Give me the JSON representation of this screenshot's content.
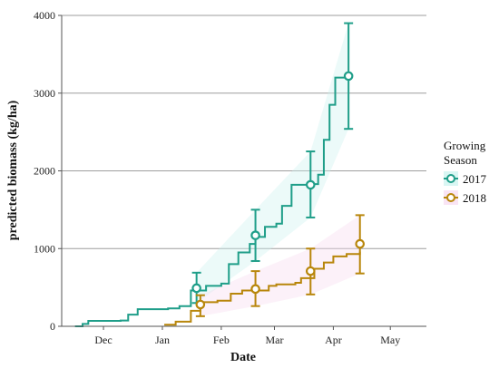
{
  "chart_data": {
    "type": "line",
    "xlabel": "Date",
    "ylabel": "predicted biomass (kg/ha)",
    "x_ticks": [
      {
        "label": "Dec",
        "date": "2016-12-01"
      },
      {
        "label": "Jan",
        "date": "2017-01-01"
      },
      {
        "label": "Feb",
        "date": "2017-02-01"
      },
      {
        "label": "Mar",
        "date": "2017-03-01"
      },
      {
        "label": "Apr",
        "date": "2017-04-01"
      },
      {
        "label": "May",
        "date": "2017-05-01"
      }
    ],
    "xlim": [
      "2016-11-09",
      "2017-05-20"
    ],
    "ylim": [
      0,
      4000
    ],
    "y_ticks": [
      0,
      1000,
      2000,
      3000,
      4000
    ],
    "grid": "horizontal",
    "legend": {
      "title_lines": [
        "Growing",
        "Season"
      ],
      "placement": "right"
    },
    "series": [
      {
        "name": "2017",
        "color": "#1f9e89",
        "ribbon_color": "#c9f2ee",
        "line": [
          [
            "2016-11-16",
            0
          ],
          [
            "2016-11-20",
            30
          ],
          [
            "2016-11-23",
            70
          ],
          [
            "2016-12-10",
            75
          ],
          [
            "2016-12-14",
            150
          ],
          [
            "2016-12-19",
            220
          ],
          [
            "2017-01-04",
            230
          ],
          [
            "2017-01-10",
            260
          ],
          [
            "2017-01-16",
            460
          ],
          [
            "2017-01-24",
            520
          ],
          [
            "2017-02-01",
            550
          ],
          [
            "2017-02-05",
            800
          ],
          [
            "2017-02-10",
            950
          ],
          [
            "2017-02-16",
            1060
          ],
          [
            "2017-02-19",
            1150
          ],
          [
            "2017-02-24",
            1280
          ],
          [
            "2017-03-02",
            1320
          ],
          [
            "2017-03-05",
            1550
          ],
          [
            "2017-03-10",
            1820
          ],
          [
            "2017-03-20",
            1830
          ],
          [
            "2017-03-24",
            1950
          ],
          [
            "2017-03-27",
            2400
          ],
          [
            "2017-03-30",
            2850
          ],
          [
            "2017-04-02",
            3200
          ],
          [
            "2017-04-09",
            3210
          ]
        ],
        "points": [
          {
            "date": "2017-01-19",
            "y": 490,
            "ymin": 300,
            "ymax": 690
          },
          {
            "date": "2017-02-19",
            "y": 1170,
            "ymin": 840,
            "ymax": 1500
          },
          {
            "date": "2017-03-20",
            "y": 1820,
            "ymin": 1400,
            "ymax": 2250
          },
          {
            "date": "2017-04-09",
            "y": 3220,
            "ymin": 2540,
            "ymax": 3900
          }
        ]
      },
      {
        "name": "2018",
        "color": "#b8860b",
        "ribbon_color": "#f7d8ef",
        "line": [
          [
            "2017-01-02",
            20
          ],
          [
            "2017-01-08",
            60
          ],
          [
            "2017-01-16",
            200
          ],
          [
            "2017-01-21",
            310
          ],
          [
            "2017-01-30",
            330
          ],
          [
            "2017-02-06",
            420
          ],
          [
            "2017-02-12",
            460
          ],
          [
            "2017-02-26",
            520
          ],
          [
            "2017-03-02",
            540
          ],
          [
            "2017-03-12",
            560
          ],
          [
            "2017-03-15",
            620
          ],
          [
            "2017-03-22",
            740
          ],
          [
            "2017-03-27",
            820
          ],
          [
            "2017-04-01",
            900
          ],
          [
            "2017-04-08",
            930
          ],
          [
            "2017-04-15",
            960
          ]
        ],
        "points": [
          {
            "date": "2017-01-21",
            "y": 280,
            "ymin": 130,
            "ymax": 400
          },
          {
            "date": "2017-02-19",
            "y": 480,
            "ymin": 260,
            "ymax": 710
          },
          {
            "date": "2017-03-20",
            "y": 710,
            "ymin": 410,
            "ymax": 1000
          },
          {
            "date": "2017-04-15",
            "y": 1060,
            "ymin": 680,
            "ymax": 1430
          }
        ]
      }
    ]
  }
}
